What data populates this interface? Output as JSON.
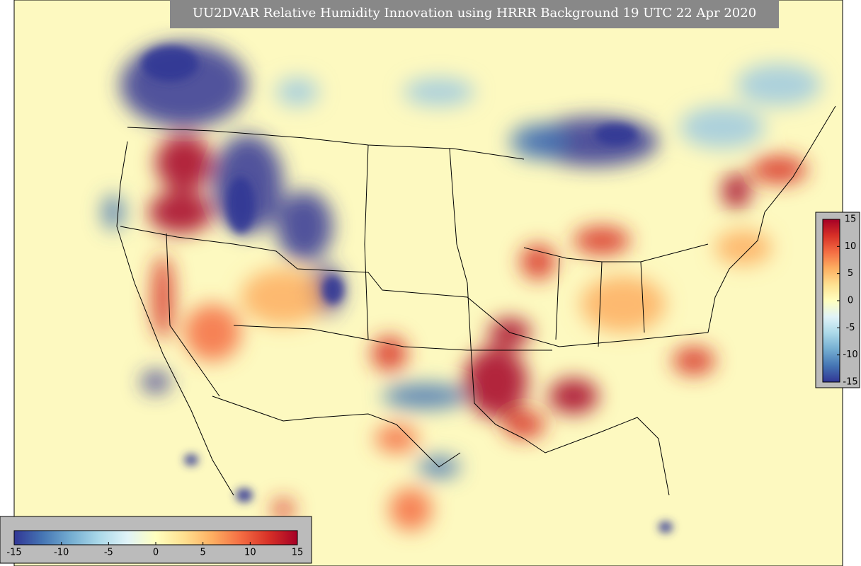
{
  "title": "UU2DVAR Relative Humidity Innovation using HRRR Background 19 UTC 22 Apr 2020",
  "horizontal_colorbar": {
    "ticks": [
      -15,
      -10,
      -5,
      0,
      5,
      10,
      15
    ]
  },
  "vertical_colorbar": {
    "ticks": [
      15,
      10,
      5,
      0,
      -5,
      -10,
      -15
    ]
  }
}
